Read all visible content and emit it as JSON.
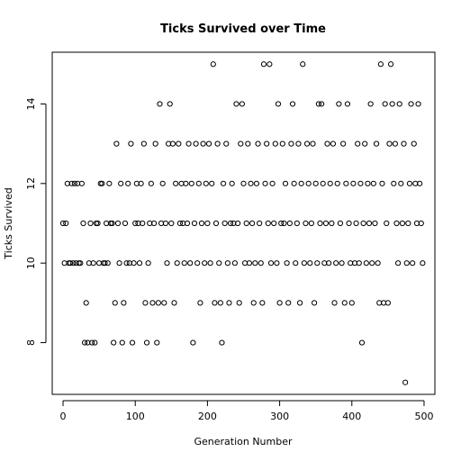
{
  "chart_data": {
    "type": "scatter",
    "title": "Ticks Survived over Time",
    "xlabel": "Generation Number",
    "ylabel": "Ticks Survived",
    "xlim": [
      -15,
      515
    ],
    "ylim": [
      6.7,
      15.3
    ],
    "xticks": [
      0,
      100,
      200,
      300,
      400,
      500
    ],
    "yticks": [
      8,
      10,
      12,
      14
    ],
    "grid": false,
    "marker": "open-circle",
    "color": "#000000",
    "points": [
      [
        0,
        11
      ],
      [
        2,
        10
      ],
      [
        4,
        11
      ],
      [
        6,
        12
      ],
      [
        8,
        10
      ],
      [
        10,
        10
      ],
      [
        12,
        12
      ],
      [
        14,
        10
      ],
      [
        16,
        12
      ],
      [
        18,
        10
      ],
      [
        20,
        12
      ],
      [
        22,
        10
      ],
      [
        24,
        10
      ],
      [
        26,
        12
      ],
      [
        28,
        11
      ],
      [
        30,
        8
      ],
      [
        32,
        9
      ],
      [
        34,
        8
      ],
      [
        36,
        10
      ],
      [
        38,
        11
      ],
      [
        40,
        8
      ],
      [
        42,
        10
      ],
      [
        44,
        8
      ],
      [
        46,
        11
      ],
      [
        48,
        11
      ],
      [
        50,
        10
      ],
      [
        52,
        12
      ],
      [
        54,
        12
      ],
      [
        56,
        10
      ],
      [
        58,
        10
      ],
      [
        60,
        11
      ],
      [
        62,
        10
      ],
      [
        64,
        12
      ],
      [
        66,
        11
      ],
      [
        68,
        11
      ],
      [
        70,
        8
      ],
      [
        72,
        9
      ],
      [
        74,
        13
      ],
      [
        76,
        11
      ],
      [
        78,
        10
      ],
      [
        80,
        12
      ],
      [
        82,
        8
      ],
      [
        84,
        9
      ],
      [
        86,
        11
      ],
      [
        88,
        10
      ],
      [
        90,
        12
      ],
      [
        92,
        10
      ],
      [
        94,
        13
      ],
      [
        96,
        8
      ],
      [
        98,
        10
      ],
      [
        100,
        11
      ],
      [
        102,
        12
      ],
      [
        104,
        11
      ],
      [
        106,
        10
      ],
      [
        108,
        12
      ],
      [
        110,
        11
      ],
      [
        112,
        13
      ],
      [
        114,
        9
      ],
      [
        116,
        8
      ],
      [
        118,
        10
      ],
      [
        120,
        11
      ],
      [
        122,
        12
      ],
      [
        124,
        9
      ],
      [
        126,
        11
      ],
      [
        128,
        13
      ],
      [
        130,
        8
      ],
      [
        132,
        9
      ],
      [
        134,
        14
      ],
      [
        136,
        11
      ],
      [
        138,
        12
      ],
      [
        140,
        9
      ],
      [
        142,
        11
      ],
      [
        144,
        10
      ],
      [
        146,
        13
      ],
      [
        148,
        14
      ],
      [
        150,
        11
      ],
      [
        152,
        13
      ],
      [
        154,
        9
      ],
      [
        156,
        12
      ],
      [
        158,
        10
      ],
      [
        160,
        13
      ],
      [
        162,
        11
      ],
      [
        164,
        12
      ],
      [
        166,
        11
      ],
      [
        168,
        10
      ],
      [
        170,
        12
      ],
      [
        172,
        11
      ],
      [
        174,
        13
      ],
      [
        176,
        10
      ],
      [
        178,
        12
      ],
      [
        180,
        8
      ],
      [
        182,
        11
      ],
      [
        184,
        13
      ],
      [
        186,
        10
      ],
      [
        188,
        12
      ],
      [
        190,
        9
      ],
      [
        192,
        11
      ],
      [
        194,
        13
      ],
      [
        196,
        10
      ],
      [
        198,
        12
      ],
      [
        200,
        11
      ],
      [
        202,
        13
      ],
      [
        204,
        10
      ],
      [
        206,
        12
      ],
      [
        208,
        15
      ],
      [
        210,
        9
      ],
      [
        212,
        11
      ],
      [
        214,
        13
      ],
      [
        216,
        10
      ],
      [
        218,
        9
      ],
      [
        220,
        8
      ],
      [
        222,
        12
      ],
      [
        224,
        11
      ],
      [
        226,
        13
      ],
      [
        228,
        10
      ],
      [
        230,
        9
      ],
      [
        232,
        11
      ],
      [
        234,
        12
      ],
      [
        236,
        11
      ],
      [
        238,
        10
      ],
      [
        240,
        14
      ],
      [
        242,
        11
      ],
      [
        244,
        9
      ],
      [
        246,
        13
      ],
      [
        248,
        14
      ],
      [
        250,
        12
      ],
      [
        252,
        10
      ],
      [
        254,
        11
      ],
      [
        256,
        13
      ],
      [
        258,
        10
      ],
      [
        260,
        12
      ],
      [
        262,
        11
      ],
      [
        264,
        9
      ],
      [
        266,
        10
      ],
      [
        268,
        12
      ],
      [
        270,
        13
      ],
      [
        272,
        11
      ],
      [
        274,
        10
      ],
      [
        276,
        9
      ],
      [
        278,
        15
      ],
      [
        280,
        12
      ],
      [
        282,
        13
      ],
      [
        284,
        11
      ],
      [
        286,
        15
      ],
      [
        288,
        10
      ],
      [
        290,
        12
      ],
      [
        292,
        11
      ],
      [
        294,
        13
      ],
      [
        296,
        10
      ],
      [
        298,
        14
      ],
      [
        300,
        9
      ],
      [
        302,
        11
      ],
      [
        304,
        13
      ],
      [
        306,
        11
      ],
      [
        308,
        12
      ],
      [
        310,
        10
      ],
      [
        312,
        9
      ],
      [
        314,
        11
      ],
      [
        316,
        13
      ],
      [
        318,
        14
      ],
      [
        320,
        12
      ],
      [
        322,
        10
      ],
      [
        324,
        11
      ],
      [
        326,
        13
      ],
      [
        328,
        9
      ],
      [
        330,
        12
      ],
      [
        332,
        15
      ],
      [
        334,
        10
      ],
      [
        336,
        11
      ],
      [
        338,
        13
      ],
      [
        340,
        12
      ],
      [
        342,
        10
      ],
      [
        344,
        11
      ],
      [
        346,
        13
      ],
      [
        348,
        9
      ],
      [
        350,
        12
      ],
      [
        352,
        10
      ],
      [
        354,
        14
      ],
      [
        356,
        11
      ],
      [
        358,
        14
      ],
      [
        360,
        12
      ],
      [
        362,
        10
      ],
      [
        364,
        11
      ],
      [
        366,
        13
      ],
      [
        368,
        10
      ],
      [
        370,
        12
      ],
      [
        372,
        11
      ],
      [
        374,
        13
      ],
      [
        376,
        9
      ],
      [
        378,
        10
      ],
      [
        380,
        12
      ],
      [
        382,
        14
      ],
      [
        384,
        11
      ],
      [
        386,
        10
      ],
      [
        388,
        13
      ],
      [
        390,
        9
      ],
      [
        392,
        12
      ],
      [
        394,
        14
      ],
      [
        396,
        11
      ],
      [
        398,
        10
      ],
      [
        400,
        9
      ],
      [
        402,
        12
      ],
      [
        404,
        10
      ],
      [
        406,
        11
      ],
      [
        408,
        13
      ],
      [
        410,
        10
      ],
      [
        412,
        12
      ],
      [
        414,
        8
      ],
      [
        416,
        11
      ],
      [
        418,
        13
      ],
      [
        420,
        10
      ],
      [
        422,
        12
      ],
      [
        424,
        11
      ],
      [
        426,
        14
      ],
      [
        428,
        10
      ],
      [
        430,
        12
      ],
      [
        432,
        11
      ],
      [
        434,
        13
      ],
      [
        436,
        10
      ],
      [
        438,
        9
      ],
      [
        440,
        15
      ],
      [
        442,
        12
      ],
      [
        444,
        9
      ],
      [
        446,
        14
      ],
      [
        448,
        11
      ],
      [
        450,
        9
      ],
      [
        452,
        13
      ],
      [
        454,
        15
      ],
      [
        456,
        14
      ],
      [
        458,
        12
      ],
      [
        460,
        13
      ],
      [
        462,
        11
      ],
      [
        464,
        10
      ],
      [
        466,
        14
      ],
      [
        468,
        12
      ],
      [
        470,
        11
      ],
      [
        472,
        13
      ],
      [
        474,
        7
      ],
      [
        476,
        10
      ],
      [
        478,
        11
      ],
      [
        480,
        12
      ],
      [
        482,
        14
      ],
      [
        484,
        10
      ],
      [
        486,
        13
      ],
      [
        488,
        12
      ],
      [
        490,
        11
      ],
      [
        492,
        14
      ],
      [
        494,
        12
      ],
      [
        496,
        11
      ],
      [
        498,
        10
      ]
    ]
  }
}
